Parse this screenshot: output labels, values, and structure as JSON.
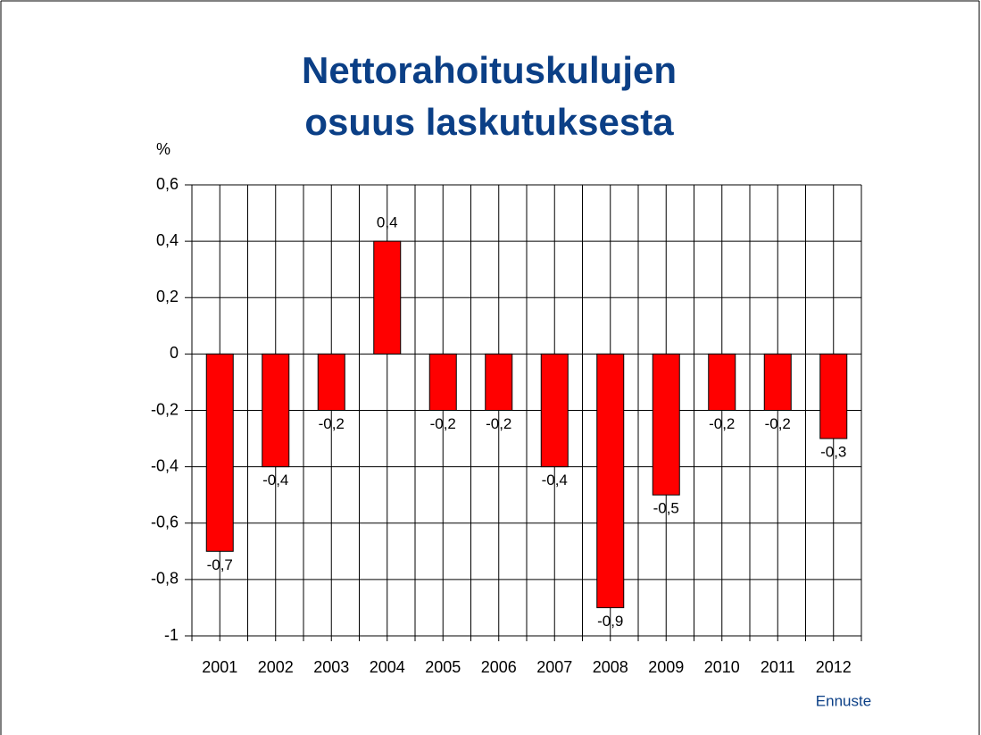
{
  "chart_data": {
    "type": "bar",
    "title": [
      "Nettorahoituskulujen",
      "osuus laskutuksesta"
    ],
    "y_label": "%",
    "annotation": "Ennuste",
    "categories": [
      "2001",
      "2002",
      "2003",
      "2004",
      "2005",
      "2006",
      "2007",
      "2008",
      "2009",
      "2010",
      "2011",
      "2012"
    ],
    "values": [
      -0.7,
      -0.4,
      -0.2,
      0.4,
      -0.2,
      -0.2,
      -0.4,
      -0.9,
      -0.5,
      -0.2,
      -0.2,
      -0.3
    ],
    "value_labels": [
      "-0,7",
      "-0,4",
      "-0,2",
      "0,4",
      "-0,2",
      "-0,2",
      "-0,4",
      "-0,9",
      "-0,5",
      "-0,2",
      "-0,2",
      "-0,3"
    ],
    "color": "#ff0000",
    "ylim": [
      -1,
      0.6
    ],
    "yticks": [
      {
        "value": -1,
        "label": "-1"
      },
      {
        "value": -0.8,
        "label": "-0,8"
      },
      {
        "value": -0.6,
        "label": "-0,6"
      },
      {
        "value": -0.4,
        "label": "-0,4"
      },
      {
        "value": -0.2,
        "label": "-0,2"
      },
      0,
      {
        "value": 0.2,
        "label": "0,2"
      },
      {
        "value": 0.4,
        "label": "0,4"
      },
      {
        "value": 0.6,
        "label": "0,6"
      }
    ],
    "grid": true
  }
}
